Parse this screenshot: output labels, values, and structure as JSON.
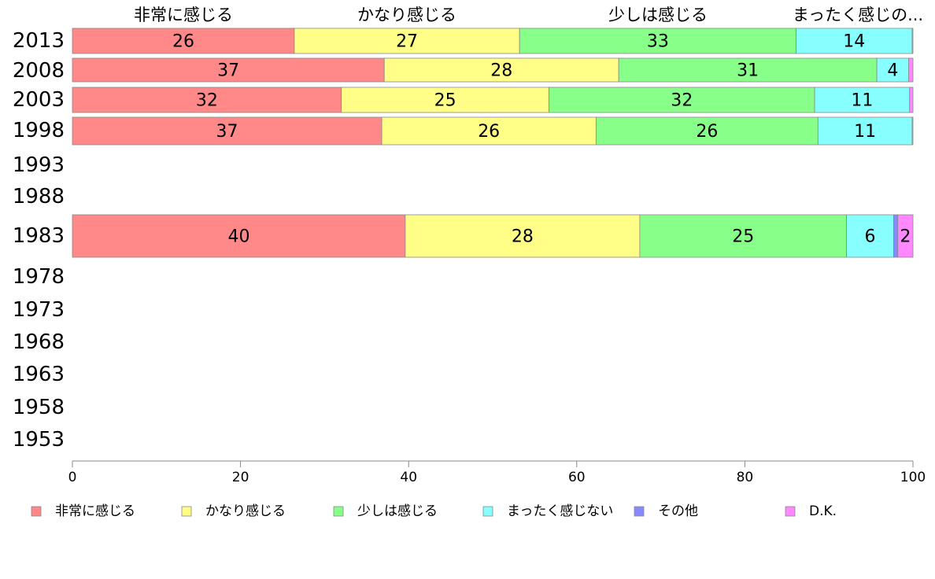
{
  "chart_data": {
    "type": "bar",
    "orientation": "horizontal",
    "stacked": true,
    "categories": [
      "2013",
      "2008",
      "2003",
      "1998",
      "1993",
      "1988",
      "1983",
      "1978",
      "1973",
      "1968",
      "1963",
      "1958",
      "1953"
    ],
    "series": [
      {
        "name": "非常に感じる",
        "color": "#FF8888",
        "values": [
          26.4,
          37.1,
          32.0,
          36.8,
          null,
          null,
          39.6,
          null,
          null,
          null,
          null,
          null,
          null
        ],
        "labels": [
          "26",
          "37",
          "32",
          "37",
          "",
          "",
          "40",
          "",
          "",
          "",
          "",
          "",
          ""
        ]
      },
      {
        "name": "かなり感じる",
        "color": "#FFFF88",
        "values": [
          26.8,
          27.9,
          24.7,
          25.5,
          null,
          null,
          27.9,
          null,
          null,
          null,
          null,
          null,
          null
        ],
        "labels": [
          "27",
          "28",
          "25",
          "26",
          "",
          "",
          "28",
          "",
          "",
          "",
          "",
          "",
          ""
        ]
      },
      {
        "name": "少しは感じる",
        "color": "#88FF88",
        "values": [
          32.9,
          30.7,
          31.6,
          26.4,
          null,
          null,
          24.6,
          null,
          null,
          null,
          null,
          null,
          null
        ],
        "labels": [
          "33",
          "31",
          "32",
          "26",
          "",
          "",
          "25",
          "",
          "",
          "",
          "",
          "",
          ""
        ]
      },
      {
        "name": "まったく感じない",
        "color": "#88FFFF",
        "values": [
          13.8,
          3.8,
          11.3,
          11.2,
          null,
          null,
          5.6,
          null,
          null,
          null,
          null,
          null,
          null
        ],
        "labels": [
          "14",
          "4",
          "11",
          "11",
          "",
          "",
          "6",
          "",
          "",
          "",
          "",
          "",
          ""
        ]
      },
      {
        "name": "その他",
        "color": "#8888FF",
        "values": [
          0,
          0,
          0,
          0,
          null,
          null,
          0.5,
          null,
          null,
          null,
          null,
          null,
          null
        ],
        "labels": [
          "",
          "",
          "",
          "",
          "",
          "",
          "",
          "",
          "",
          "",
          "",
          "",
          ""
        ]
      },
      {
        "name": "D.K.",
        "color": "#FF88FF",
        "values": [
          0.1,
          0.5,
          0.4,
          0.1,
          null,
          null,
          1.8,
          null,
          null,
          null,
          null,
          null,
          null
        ],
        "labels": [
          "",
          "",
          "",
          "",
          "",
          "",
          "2",
          "",
          "",
          "",
          "",
          "",
          ""
        ]
      }
    ],
    "top_labels": [
      "非常に感じる",
      "かなり感じる",
      "少しは感じる",
      "まったく感じの..."
    ],
    "xlim": [
      0,
      100
    ],
    "xticks": [
      0,
      20,
      40,
      60,
      80,
      100
    ],
    "legend_position": "bottom",
    "grid": false
  }
}
